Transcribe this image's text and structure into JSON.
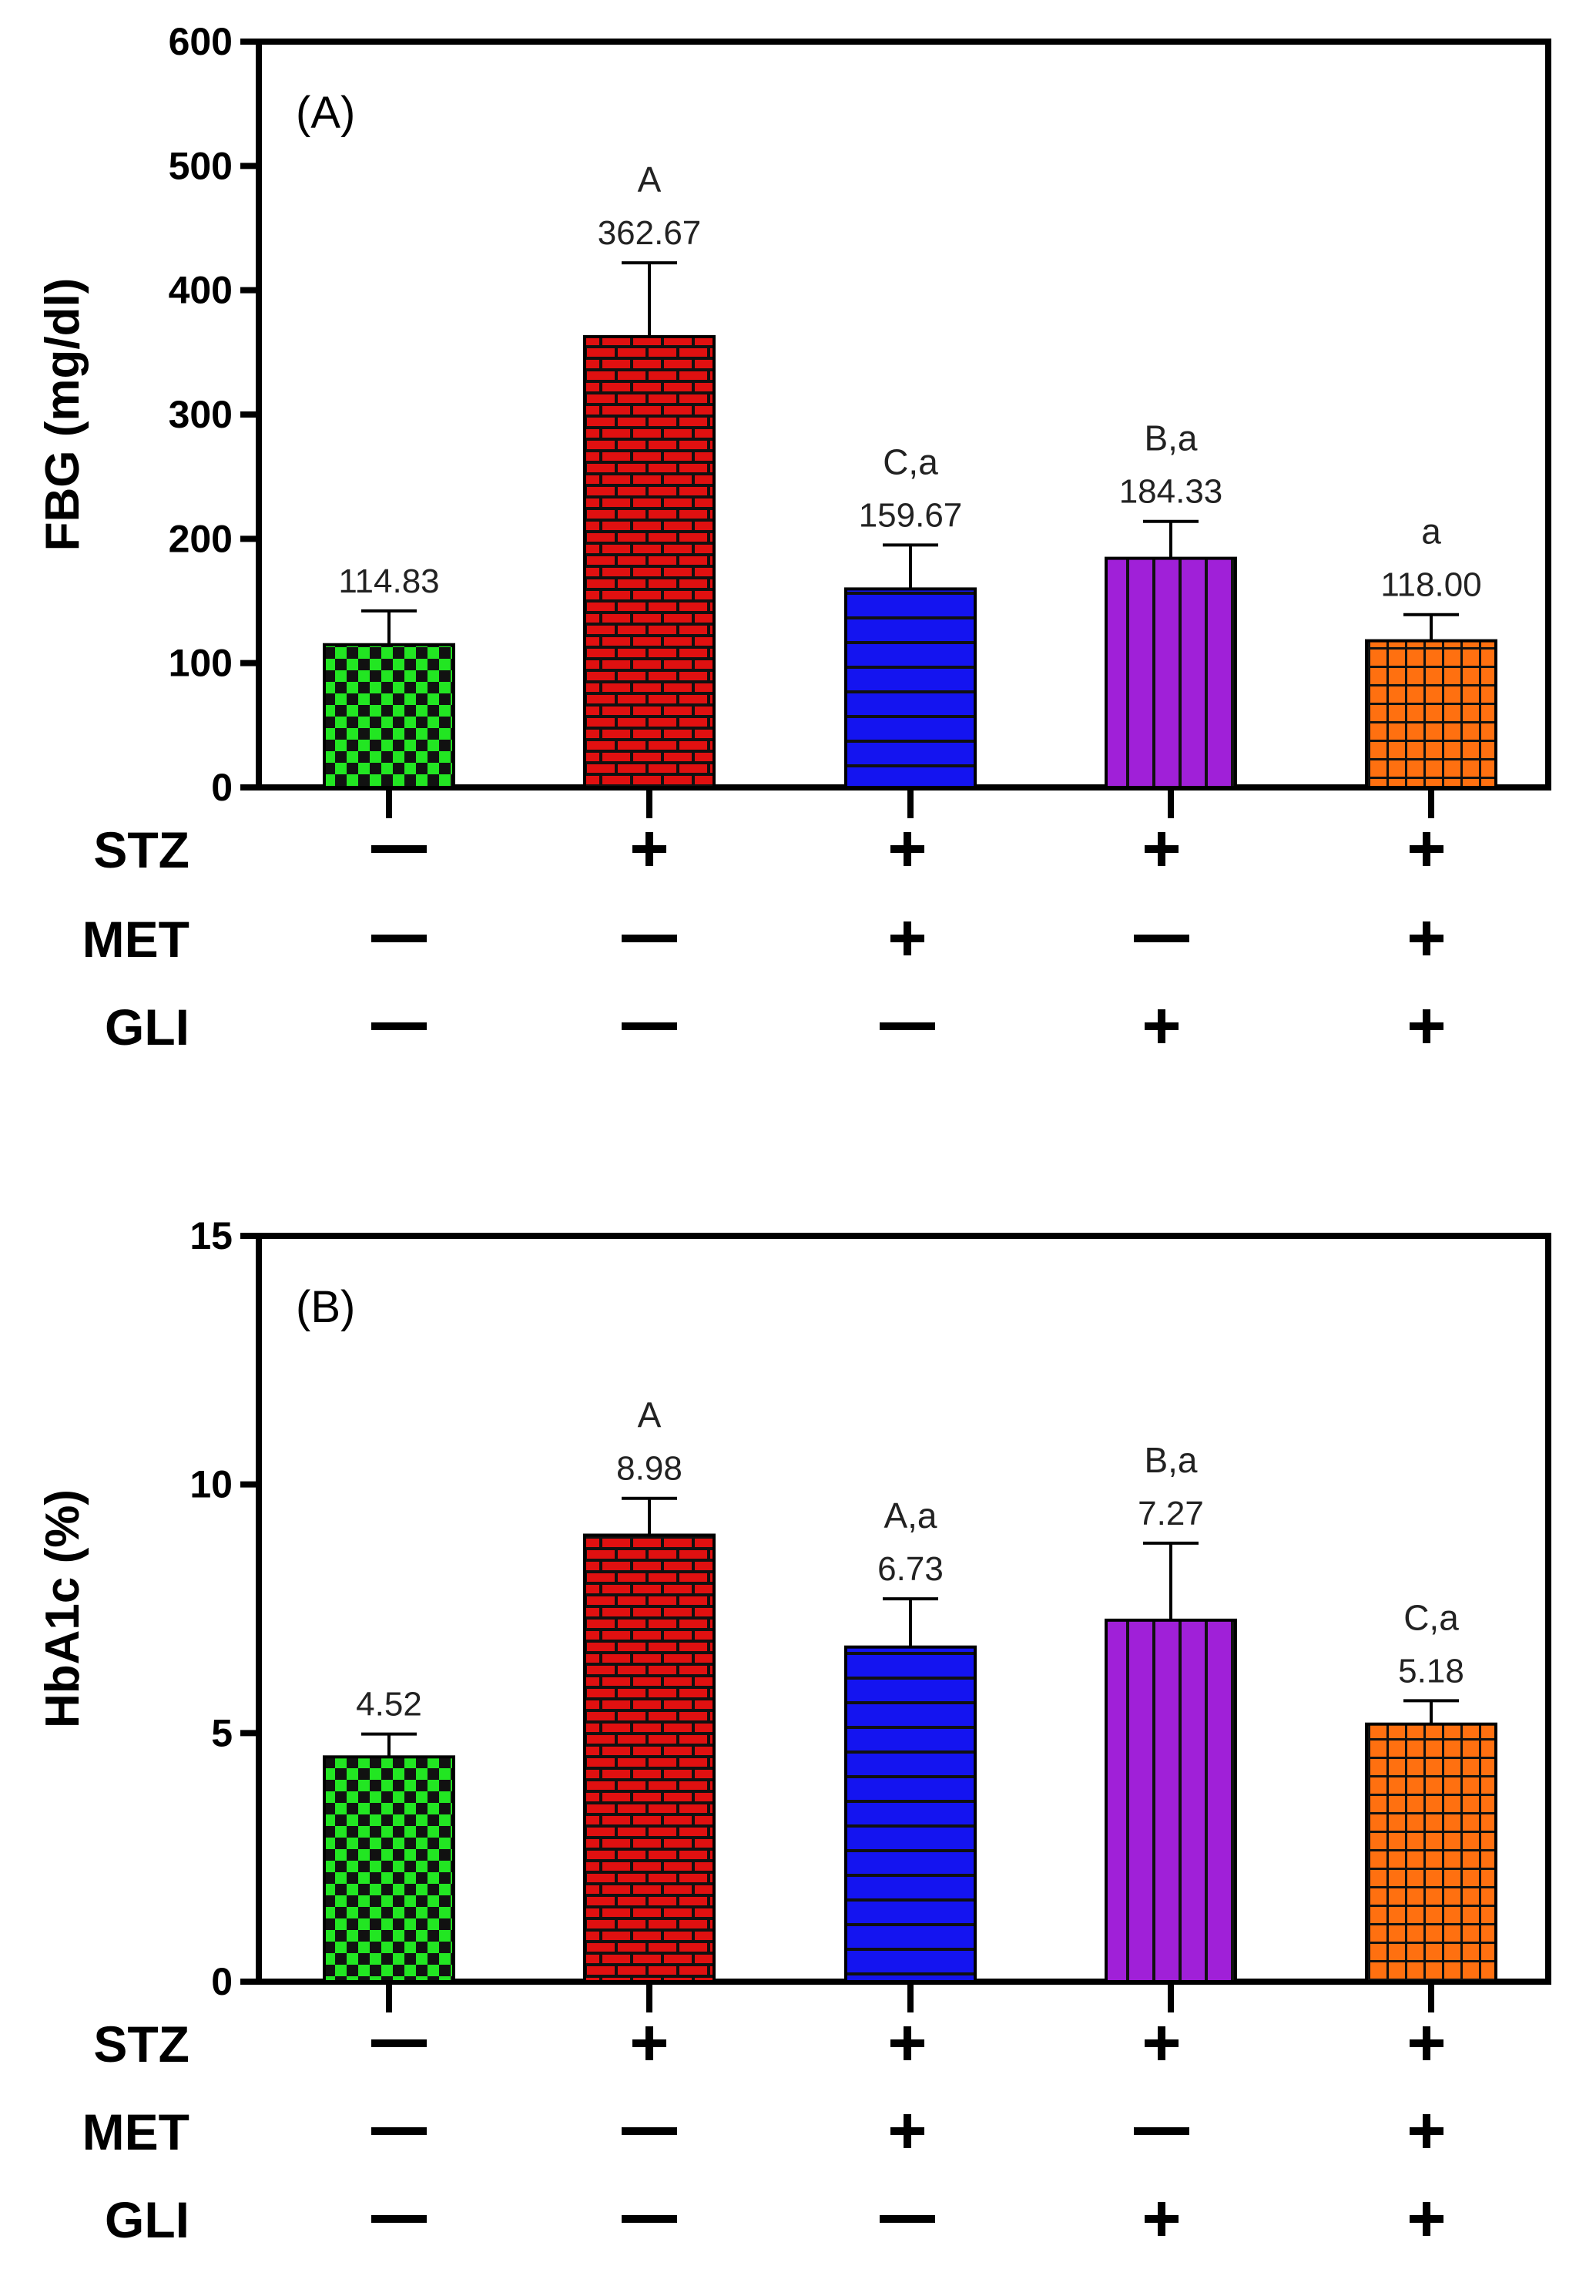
{
  "chart_data": [
    {
      "type": "bar",
      "panel_label": "(A)",
      "ylabel": "FBG (mg/dl)",
      "ylim": [
        0,
        600
      ],
      "yticks": [
        "0",
        "100",
        "200",
        "300",
        "400",
        "500",
        "600"
      ],
      "grid": false,
      "values": [
        114.83,
        362.67,
        159.67,
        184.33,
        118.0
      ],
      "value_labels": [
        "114.83",
        "362.67",
        "159.67",
        "184.33",
        "118.00"
      ],
      "error_upper": [
        142,
        422,
        195,
        214,
        139
      ],
      "significance": [
        "",
        "A",
        "C,a",
        "B,a",
        "a"
      ],
      "patterns": [
        "checker",
        "brick",
        "hstripe",
        "vstripe",
        "grid"
      ],
      "colors": [
        "#22e622",
        "#e01010",
        "#1414f0",
        "#a020d8",
        "#ff7010"
      ],
      "treatments": {
        "labels": [
          "STZ",
          "MET",
          "GLI"
        ],
        "rows": [
          [
            "—",
            "+",
            "+",
            "+",
            "+"
          ],
          [
            "—",
            "—",
            "+",
            "—",
            "+"
          ],
          [
            "—",
            "—",
            "—",
            "+",
            "+"
          ]
        ]
      }
    },
    {
      "type": "bar",
      "panel_label": "(B)",
      "ylabel": "HbA1c (%)",
      "ylim": [
        0,
        15
      ],
      "yticks": [
        "0",
        "5",
        "10",
        "15"
      ],
      "grid": false,
      "values": [
        4.52,
        8.98,
        6.73,
        7.27,
        5.18
      ],
      "value_labels": [
        "4.52",
        "8.98",
        "6.73",
        "7.27",
        "5.18"
      ],
      "error_upper": [
        4.98,
        9.72,
        7.7,
        8.82,
        5.65
      ],
      "significance": [
        "",
        "A",
        "A,a",
        "B,a",
        "C,a"
      ],
      "patterns": [
        "checker",
        "brick",
        "hstripe",
        "vstripe",
        "grid"
      ],
      "colors": [
        "#22e622",
        "#e01010",
        "#1414f0",
        "#a020d8",
        "#ff7010"
      ],
      "treatments": {
        "labels": [
          "STZ",
          "MET",
          "GLI"
        ],
        "rows": [
          [
            "—",
            "+",
            "+",
            "+",
            "+"
          ],
          [
            "—",
            "—",
            "+",
            "—",
            "+"
          ],
          [
            "—",
            "—",
            "—",
            "+",
            "+"
          ]
        ]
      }
    }
  ]
}
